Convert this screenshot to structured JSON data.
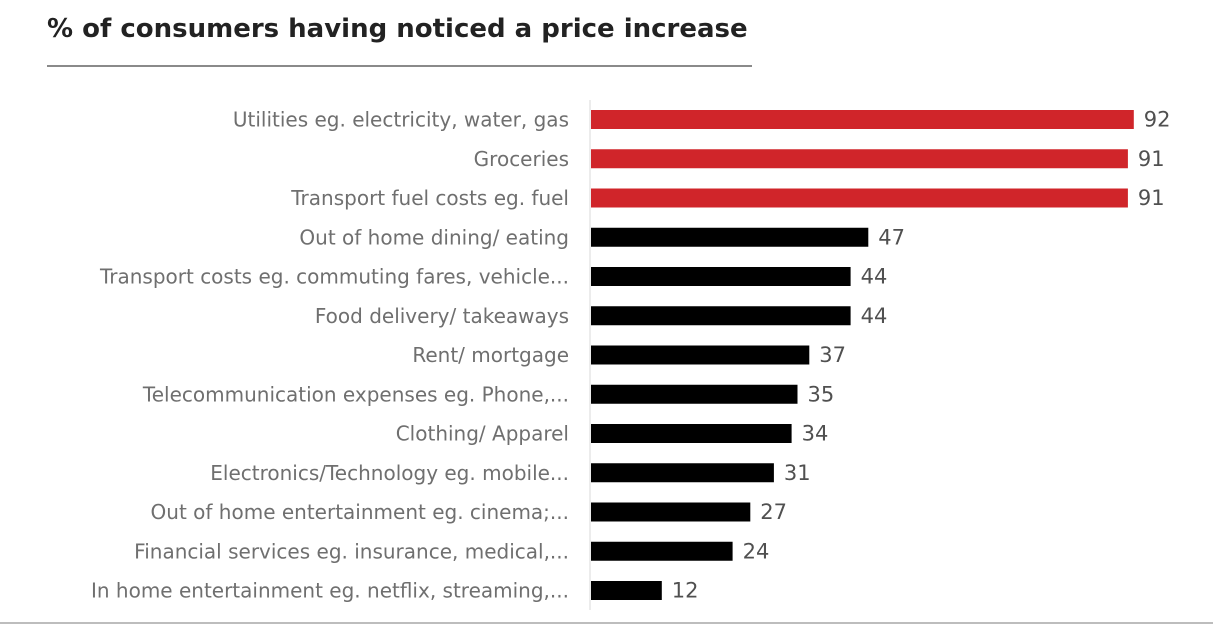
{
  "chart_data": {
    "type": "bar",
    "orientation": "horizontal",
    "title": "% of consumers having noticed a price increase",
    "categories": [
      "Utilities eg. electricity, water, gas",
      "Groceries",
      "Transport fuel costs eg. fuel",
      "Out of home dining/ eating",
      "Transport costs eg. commuting fares, vehicle...",
      "Food delivery/ takeaways",
      "Rent/ mortgage",
      "Telecommunication expenses eg. Phone,...",
      "Clothing/ Apparel",
      "Electronics/Technology eg. mobile...",
      "Out of home entertainment eg. cinema;...",
      "Financial services eg. insurance, medical,...",
      "In home entertainment eg. netflix, streaming,..."
    ],
    "values": [
      92,
      91,
      91,
      47,
      44,
      44,
      37,
      35,
      34,
      31,
      27,
      24,
      12
    ],
    "xlim": [
      0,
      100
    ],
    "grid": false,
    "legend": "none",
    "highlight_count": 3,
    "colors": {
      "highlight": "#d0252a",
      "default": "#000000"
    }
  }
}
